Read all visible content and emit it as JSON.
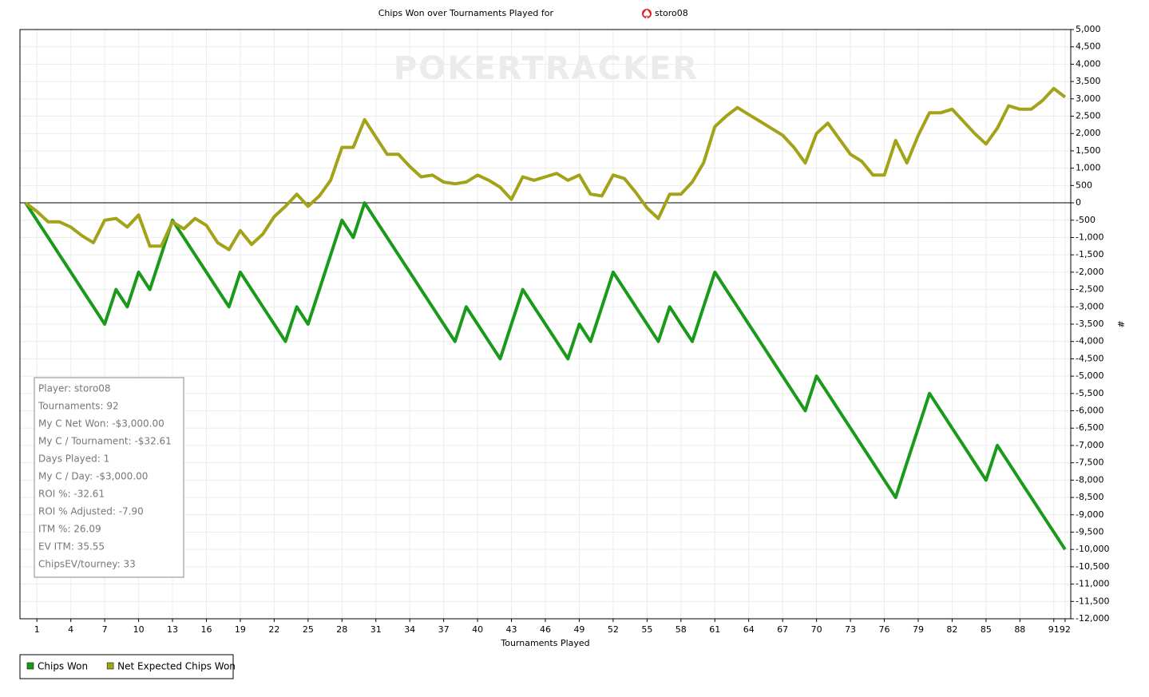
{
  "chart_data": {
    "type": "line",
    "title": "Chips Won over Tournaments Played for",
    "player": "storo08",
    "watermark": "POKERTRACKER",
    "x_label": "Tournaments Played",
    "y_label": "#",
    "grid": true,
    "legend": "bottom-left",
    "xlim": [
      -0.5,
      92.5
    ],
    "xticks": [
      1,
      4,
      7,
      10,
      13,
      16,
      19,
      22,
      25,
      28,
      31,
      34,
      37,
      40,
      43,
      46,
      49,
      52,
      55,
      58,
      61,
      64,
      67,
      70,
      73,
      76,
      79,
      82,
      85,
      88,
      91,
      92
    ],
    "ylim": [
      -12000,
      5000
    ],
    "yticks": [
      {
        "value": 5000,
        "label": "5,000"
      },
      {
        "value": 4500,
        "label": "4,500"
      },
      {
        "value": 4000,
        "label": "4,000"
      },
      {
        "value": 3500,
        "label": "3,500"
      },
      {
        "value": 3000,
        "label": "3,000"
      },
      {
        "value": 2500,
        "label": "2,500"
      },
      {
        "value": 2000,
        "label": "2,000"
      },
      {
        "value": 1500,
        "label": "1,500"
      },
      {
        "value": 1000,
        "label": "1,000"
      },
      500,
      0,
      -500,
      {
        "value": -1000,
        "label": "-1,000"
      },
      {
        "value": -1500,
        "label": "-1,500"
      },
      {
        "value": -2000,
        "label": "-2,000"
      },
      {
        "value": -2500,
        "label": "-2,500"
      },
      {
        "value": -3000,
        "label": "-3,000"
      },
      {
        "value": -3500,
        "label": "-3,500"
      },
      {
        "value": -4000,
        "label": "-4,000"
      },
      {
        "value": -4500,
        "label": "-4,500"
      },
      {
        "value": -5000,
        "label": "-5,000"
      },
      {
        "value": -5500,
        "label": "-5,500"
      },
      {
        "value": -6000,
        "label": "-6,000"
      },
      {
        "value": -6500,
        "label": "-6,500"
      },
      {
        "value": -7000,
        "label": "-7,000"
      },
      {
        "value": -7500,
        "label": "-7,500"
      },
      {
        "value": -8000,
        "label": "-8,000"
      },
      {
        "value": -8500,
        "label": "-8,500"
      },
      {
        "value": -9000,
        "label": "-9,000"
      },
      {
        "value": -9500,
        "label": "-9,500"
      },
      {
        "value": -10000,
        "label": "-10,000"
      },
      {
        "value": -10500,
        "label": "-10,500"
      },
      {
        "value": -11000,
        "label": "-11,000"
      },
      {
        "value": -11500,
        "label": "-11,500"
      },
      {
        "value": -12000,
        "label": "-12,000"
      }
    ],
    "x": [
      0,
      1,
      2,
      3,
      4,
      5,
      6,
      7,
      8,
      9,
      10,
      11,
      12,
      13,
      14,
      15,
      16,
      17,
      18,
      19,
      20,
      21,
      22,
      23,
      24,
      25,
      26,
      27,
      28,
      29,
      30,
      31,
      32,
      33,
      34,
      35,
      36,
      37,
      38,
      39,
      40,
      41,
      42,
      43,
      44,
      45,
      46,
      47,
      48,
      49,
      50,
      51,
      52,
      53,
      54,
      55,
      56,
      57,
      58,
      59,
      60,
      61,
      62,
      63,
      64,
      65,
      66,
      67,
      68,
      69,
      70,
      71,
      72,
      73,
      74,
      75,
      76,
      77,
      78,
      79,
      80,
      81,
      82,
      83,
      84,
      85,
      86,
      87,
      88,
      89,
      90,
      91,
      92
    ],
    "series": [
      {
        "name": "Chips Won",
        "color": "#1a9a1a",
        "values": [
          0,
          -500,
          -1000,
          -1500,
          -2000,
          -2500,
          -3000,
          -3500,
          -2500,
          -3000,
          -2000,
          -2500,
          -1500,
          -500,
          -1000,
          -1500,
          -2000,
          -2500,
          -3000,
          -2000,
          -2500,
          -3000,
          -3500,
          -4000,
          -3000,
          -3500,
          -2500,
          -1500,
          -500,
          -1000,
          0,
          -500,
          -1000,
          -1500,
          -2000,
          -2500,
          -3000,
          -3500,
          -4000,
          -3000,
          -3500,
          -4000,
          -4500,
          -3500,
          -2500,
          -3000,
          -3500,
          -4000,
          -4500,
          -3500,
          -4000,
          -3000,
          -2000,
          -2500,
          -3000,
          -3500,
          -4000,
          -3000,
          -3500,
          -4000,
          -3000,
          -2000,
          -2500,
          -3000,
          -3500,
          -4000,
          -4500,
          -5000,
          -5500,
          -6000,
          -5000,
          -5500,
          -6000,
          -6500,
          -7000,
          -7500,
          -8000,
          -8500,
          -7500,
          -6500,
          -5500,
          -6000,
          -6500,
          -7000,
          -7500,
          -8000,
          -7000,
          -7500,
          -8000,
          -8500,
          -9000,
          -9500,
          -10000
        ]
      },
      {
        "name": "Net Expected Chips Won",
        "color": "#a3a31a",
        "values": [
          0,
          -250,
          -550,
          -550,
          -700,
          -950,
          -1150,
          -500,
          -450,
          -700,
          -350,
          -1250,
          -1250,
          -550,
          -750,
          -450,
          -650,
          -1150,
          -1350,
          -800,
          -1200,
          -900,
          -400,
          -100,
          250,
          -100,
          200,
          650,
          1600,
          1600,
          2400,
          1900,
          1400,
          1400,
          1050,
          750,
          800,
          600,
          550,
          600,
          800,
          650,
          450,
          100,
          750,
          650,
          750,
          850,
          650,
          800,
          250,
          200,
          800,
          700,
          300,
          -150,
          -450,
          250,
          250,
          600,
          1150,
          2200,
          2500,
          2750,
          2550,
          2350,
          2150,
          1950,
          1600,
          1150,
          2000,
          2300,
          1850,
          1400,
          1200,
          800,
          800,
          1800,
          1150,
          1950,
          2600,
          2600,
          2700,
          2350,
          2000,
          1700,
          2150,
          2800,
          2700,
          2700,
          2950,
          3300,
          3050
        ]
      }
    ],
    "annotations": [
      "Player: storo08",
      "Tournaments: 92",
      "My C Net Won: -$3,000.00",
      "My C / Tournament: -$32.61",
      "Days Played: 1",
      "My C / Day: -$3,000.00",
      "ROI %: -32.61",
      "ROI % Adjusted: -7.90",
      "ITM %: 26.09",
      "EV ITM: 35.55",
      "ChipsEV/tourney: 33"
    ]
  }
}
